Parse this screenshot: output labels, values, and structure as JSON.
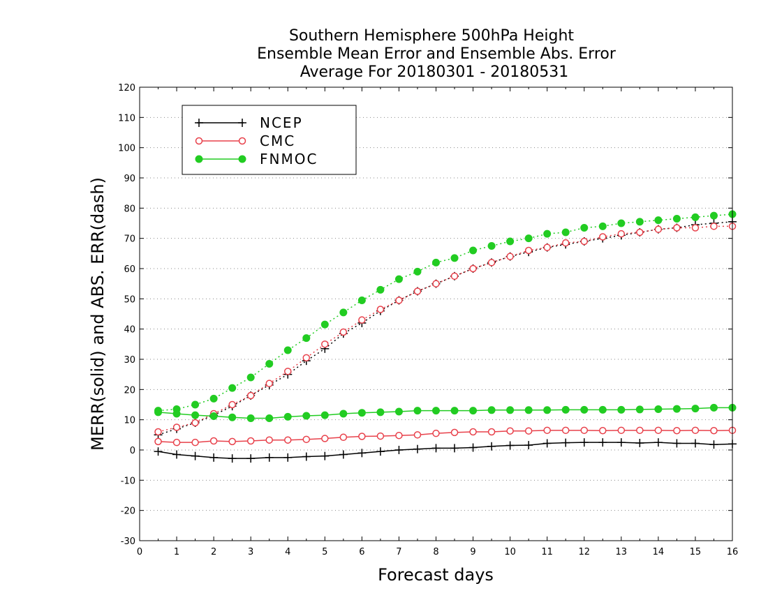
{
  "chart_data": {
    "type": "line",
    "title_lines": [
      "Southern Hemisphere 500hPa Height",
      "Ensemble Mean Error and Ensemble Abs. Error",
      "Average For 20180301 - 20180531"
    ],
    "xlabel": "Forecast days",
    "ylabel": "MERR(solid) and ABS. ERR(dash)",
    "xlim": [
      0,
      16
    ],
    "ylim": [
      -30,
      120
    ],
    "xticks": [
      0,
      1,
      2,
      3,
      4,
      5,
      6,
      7,
      8,
      9,
      10,
      11,
      12,
      13,
      14,
      15,
      16
    ],
    "yticks": [
      -30,
      -20,
      -10,
      0,
      10,
      20,
      30,
      40,
      50,
      60,
      70,
      80,
      90,
      100,
      110,
      120
    ],
    "grid": "horizontal dotted",
    "legend_position": "top-left",
    "x": [
      0.5,
      1,
      1.5,
      2,
      2.5,
      3,
      3.5,
      4,
      4.5,
      5,
      5.5,
      6,
      6.5,
      7,
      7.5,
      8,
      8.5,
      9,
      9.5,
      10,
      10.5,
      11,
      11.5,
      12,
      12.5,
      13,
      13.5,
      14,
      14.5,
      15,
      15.5,
      16
    ],
    "series": [
      {
        "name": "NCEP",
        "color": "#000000",
        "marker": "plus",
        "merr": [
          -0.5,
          -1.5,
          -2,
          -2.5,
          -2.8,
          -2.8,
          -2.5,
          -2.5,
          -2.2,
          -2,
          -1.5,
          -1,
          -0.5,
          0,
          0.3,
          0.6,
          0.6,
          0.8,
          1.2,
          1.5,
          1.6,
          2.2,
          2.4,
          2.5,
          2.5,
          2.5,
          2.3,
          2.5,
          2.2,
          2.2,
          1.8,
          2
        ],
        "abs_err": [
          5,
          7,
          9,
          11.5,
          14.5,
          18,
          21.5,
          25,
          29.5,
          33.5,
          38.5,
          42,
          46,
          49.5,
          52.5,
          55,
          57.5,
          60,
          62,
          64,
          65.5,
          67,
          68,
          69,
          70,
          71,
          72,
          73,
          73.5,
          74.5,
          75,
          75.5
        ]
      },
      {
        "name": "CMC",
        "color": "#e8404a",
        "marker": "open-circle",
        "merr": [
          2.8,
          2.5,
          2.5,
          3,
          2.8,
          3,
          3.3,
          3.3,
          3.5,
          3.8,
          4.2,
          4.5,
          4.6,
          4.8,
          5,
          5.5,
          5.8,
          6,
          6,
          6.3,
          6.3,
          6.5,
          6.5,
          6.5,
          6.4,
          6.5,
          6.5,
          6.5,
          6.4,
          6.5,
          6.4,
          6.5
        ],
        "abs_err": [
          6,
          7.5,
          9,
          12,
          15,
          18,
          22,
          26,
          30.5,
          35,
          39,
          43,
          46.5,
          49.5,
          52.5,
          55,
          57.5,
          60,
          62,
          64,
          66,
          67,
          68.5,
          69,
          70.5,
          71.5,
          72,
          73,
          73.5,
          73.5,
          74,
          74
        ]
      },
      {
        "name": "FNMOC",
        "color": "#22cc22",
        "marker": "filled-circle",
        "merr": [
          12.5,
          12,
          11.5,
          11.2,
          10.8,
          10.5,
          10.5,
          11,
          11.3,
          11.5,
          12,
          12.3,
          12.5,
          12.7,
          13,
          13,
          13,
          13,
          13.2,
          13.2,
          13.2,
          13.2,
          13.3,
          13.3,
          13.3,
          13.3,
          13.4,
          13.5,
          13.6,
          13.7,
          14,
          14
        ],
        "abs_err": [
          13,
          13.5,
          15,
          17,
          20.5,
          24,
          28.5,
          33,
          37,
          41.5,
          45.5,
          49.5,
          53,
          56.5,
          59,
          62,
          63.5,
          66,
          67.5,
          69,
          70,
          71.5,
          72,
          73.5,
          74,
          75,
          75.5,
          76,
          76.5,
          77,
          77.5,
          78
        ]
      }
    ]
  }
}
